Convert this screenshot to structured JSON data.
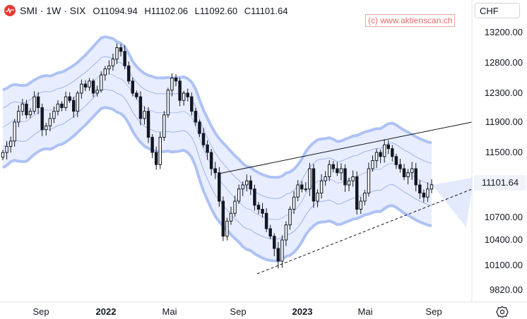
{
  "header": {
    "symbol_line": "SMI · 1W · SIX",
    "open": "O11094.94",
    "high": "H11102.06",
    "low": "L11092.60",
    "close": "C11101.64"
  },
  "watermark": "(c) www.aktienscan.ch",
  "currency": "CHF",
  "price_axis": {
    "ticks": [
      {
        "label": "13200.00",
        "v": 13200
      },
      {
        "label": "12800.00",
        "v": 12800
      },
      {
        "label": "12300.00",
        "v": 12300
      },
      {
        "label": "11900.00",
        "v": 11900
      },
      {
        "label": "11500.00",
        "v": 11500
      },
      {
        "label": "10700.00",
        "v": 10700
      },
      {
        "label": "10400.00",
        "v": 10400
      },
      {
        "label": "10100.00",
        "v": 10100
      },
      {
        "label": "9820.00",
        "v": 9820
      }
    ]
  },
  "time_axis": {
    "ticks": [
      {
        "label": "Sep",
        "bold": false
      },
      {
        "label": "2022",
        "bold": true
      },
      {
        "label": "Mai",
        "bold": false
      },
      {
        "label": "Sep",
        "bold": false
      },
      {
        "label": "2023",
        "bold": true
      },
      {
        "label": "Mai",
        "bold": false
      },
      {
        "label": "Sep",
        "bold": false
      }
    ]
  },
  "last_price": "11101.64",
  "colors": {
    "candle": "#131722",
    "band_fill": "#e8eeff",
    "band_outer": "#aec2f5",
    "band_inner": "#9db3ea"
  },
  "chart_data": {
    "type": "candlestick",
    "interval": "1W",
    "last_close": 11101.64,
    "closes": [
      11500,
      11580,
      11650,
      11900,
      12050,
      12150,
      12000,
      12050,
      12250,
      12100,
      11800,
      11850,
      11950,
      12050,
      12150,
      12100,
      12250,
      12200,
      12050,
      12300,
      12450,
      12400,
      12500,
      12300,
      12350,
      12600,
      12700,
      12750,
      12850,
      13000,
      12950,
      12750,
      12500,
      12300,
      12250,
      11950,
      12050,
      11700,
      11500,
      11350,
      11700,
      12000,
      12350,
      12550,
      12500,
      12200,
      12300,
      12250,
      12050,
      11900,
      11750,
      11600,
      11500,
      11300,
      11250,
      10900,
      10450,
      10650,
      10750,
      10900,
      11050,
      11100,
      11150,
      11050,
      10850,
      10800,
      10750,
      10550,
      10450,
      10300,
      10150,
      10400,
      10600,
      10800,
      10950,
      11100,
      11050,
      11050,
      11300,
      10900,
      11000,
      11150,
      11200,
      11350,
      11300,
      11250,
      11300,
      11100,
      11150,
      11200,
      10800,
      10900,
      11000,
      11300,
      11400,
      11500,
      11450,
      11600,
      11550,
      11450,
      11350,
      11300,
      11200,
      11250,
      11300,
      11100,
      11000,
      10950,
      11050,
      11101.64
    ]
  }
}
